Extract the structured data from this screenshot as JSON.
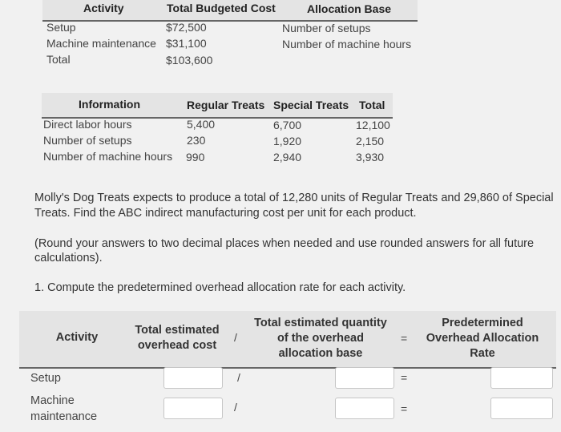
{
  "cost_table": {
    "headers": [
      "Activity",
      "Total Budgeted Cost",
      "Allocation Base"
    ],
    "rows": [
      [
        "Setup",
        "$72,500",
        "Number of setups"
      ],
      [
        "Machine maintenance",
        "$31,100",
        "Number of machine hours"
      ],
      [
        "Total",
        "$103,600",
        ""
      ]
    ]
  },
  "info_table": {
    "headers": [
      "Information",
      "Regular Treats",
      "Special Treats",
      "Total"
    ],
    "rows": [
      [
        "Direct labor hours",
        "5,400",
        "6,700",
        "12,100"
      ],
      [
        "Number of setups",
        "230",
        "1,920",
        "2,150"
      ],
      [
        "Number of machine hours",
        "990",
        "2,940",
        "3,930"
      ]
    ]
  },
  "problem": {
    "line1": "Molly's Dog Treats expects to produce a total of 12,280 units of Regular Treats and 29,860 of Special",
    "line2": "Treats. Find the ABC indirect manufacturing cost per unit for each product.",
    "round_line1": "(Round your answers to two decimal places when needed and use rounded answers for all future",
    "round_line2": "calculations).",
    "question": "1. Compute the predetermined overhead allocation rate for each activity."
  },
  "calc_table": {
    "col_activity": "Activity",
    "col_cost_line1": "Total estimated",
    "col_cost_line2": "overhead cost",
    "op_divide": "/",
    "col_qty_line1": "Total estimated quantity",
    "col_qty_line2": "of the overhead",
    "col_qty_line3": "allocation base",
    "op_equals": "=",
    "col_rate_line1": "Predetermined",
    "col_rate_line2": "Overhead Allocation",
    "col_rate_line3": "Rate",
    "rows": [
      {
        "label": "Setup",
        "label2": "",
        "cost": "",
        "qty": "",
        "rate": ""
      },
      {
        "label": "Machine",
        "label2": "maintenance",
        "cost": "",
        "qty": "",
        "rate": ""
      }
    ]
  }
}
